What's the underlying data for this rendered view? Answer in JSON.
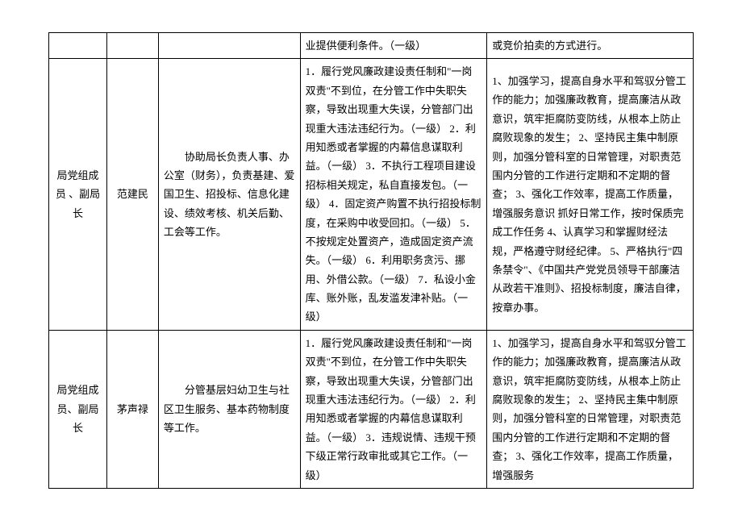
{
  "rows": [
    {
      "role": "",
      "name": "",
      "duty": "",
      "risk": "业提供便利条件。（一级）",
      "measure": "或竞价拍卖的方式进行。"
    },
    {
      "role": "局党组成员 、副局长",
      "name": "范建民",
      "duty": "　　协助局长负责人事、办公室（财务），负责基建、爱国卫生、招投标、信息化建设、绩效考核、机关后勤、工会等工作。",
      "risk": "1．履行党风廉政建设责任制和\"一岗双责\"不到位，在分管工作中失职失察，导致出现重大失误，分管部门出现重大违法违纪行为。（一级）\n2．利用知悉或者掌握的内幕信息谋取利益。（一级）\n3．不执行工程项目建设招标相关规定，私自直接发包。（一级）\n4．固定资产购置不执行招投标制度，在采购中收受回扣。（一级）\n5．不按规定处置资产，造成固定资产流失。（一级）\n6．利用职务贪污、挪用、外借公款。（一级）\n7．私设小金库、账外账，乱发滥发津补贴。（一级）",
      "measure": "1、加强学习，提高自身水平和驾驭分管工作的能力；加强廉政教育，提高廉洁从政意识，筑牢拒腐防变防线，从根本上防止腐败现象的发生；\n2、坚持民主集中制原则，加强分管科室的日常管理，对职责范围内分管的工作进行定期和不定期的督查；\n3、强化工作效率，提高工作质量，增强服务意识  抓好日常工作，按时保质完成工作任务\n4、认真学习和掌握财经法规，严格遵守财经纪律。\n5、严格执行\"四条禁令\"、《中国共产党党员领导干部廉洁从政若干准则》、招投标制度，廉洁自律，按章办事。"
    },
    {
      "role": "局党组成员、副局长",
      "name": "茅声禄",
      "duty": "　　分管基层妇幼卫生与社区卫生服务、基本药物制度等工作。",
      "risk": "1．履行党风廉政建设责任制和\"一岗双责\"不到位，在分管工作中失职失察，导致出现重大失误，分管部门出现重大违法违纪行为。（一级）\n2．利用知悉或者掌握的内幕信息谋取利益。（一级）\n3．违规说情、违规干预下级正常行政审批或其它工作。（一级）",
      "measure": "1、加强学习，提高自身水平和驾驭分管工作的能力；加强廉政教育，提高廉洁从政意识，筑牢拒腐防变防线，从根本上防止腐败现象的发生；\n2、坚持民主集中制原则，加强分管科室的日常管理，对职责范围内分管的工作进行定期和不定期的督查；\n3、强化工作效率，提高工作质量，增强服务"
    }
  ]
}
